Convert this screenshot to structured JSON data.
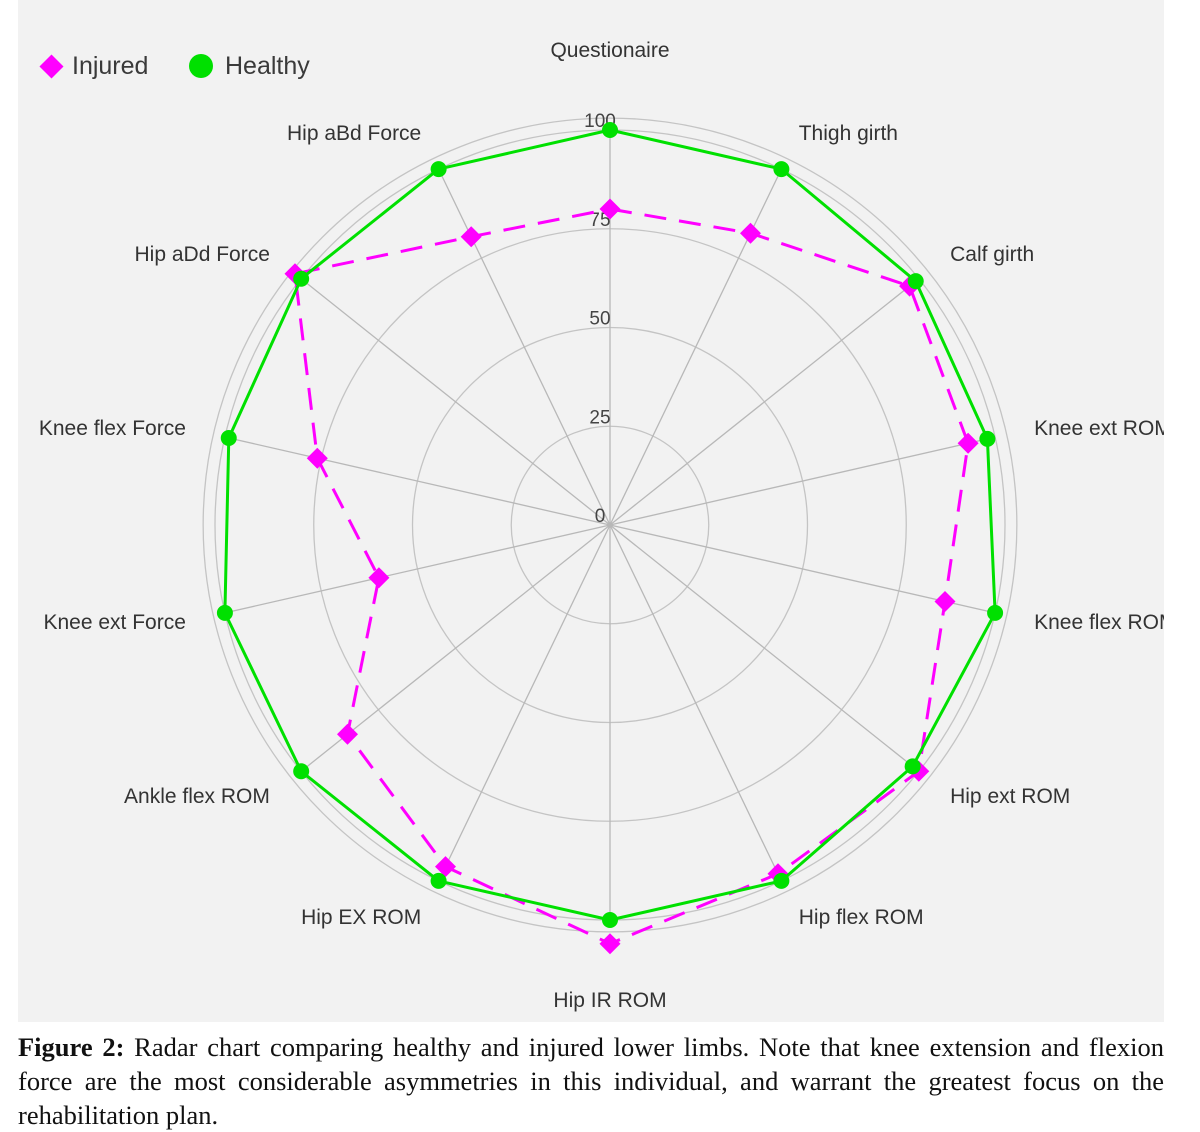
{
  "legend": {
    "injured_label": "Injured",
    "healthy_label": "Healthy"
  },
  "caption": {
    "label": "Figure 2:",
    "text": " Radar chart comparing healthy and injured lower limbs. Note that knee extension and flexion force are the most considerable asymmetries in this individual, and warrant the greatest focus on the rehabilitation plan."
  },
  "chart_data": {
    "type": "radar",
    "axes": [
      "Questionaire",
      "Thigh girth",
      "Calf girth",
      "Knee ext ROM",
      "Knee flex ROM",
      "Hip ext ROM",
      "Hip flex ROM",
      "Hip IR ROM",
      "Hip EX ROM",
      "Ankle flex ROM",
      "Knee ext Force",
      "Knee flex Force",
      "Hip aDd Force",
      "Hip aBd Force"
    ],
    "radial_ticks": [
      0,
      25,
      50,
      75,
      100
    ],
    "rlim": [
      0,
      100
    ],
    "grid": true,
    "legend_position": "top-left",
    "series": [
      {
        "name": "Injured",
        "color": "#ff00ff",
        "marker": "diamond",
        "line_style": "dashed",
        "values": [
          80,
          82,
          97,
          93,
          87,
          100,
          98,
          106,
          96,
          85,
          60,
          76,
          102,
          81
        ]
      },
      {
        "name": "Healthy",
        "color": "#00e000",
        "marker": "circle",
        "line_style": "solid",
        "values": [
          100,
          100,
          99,
          98,
          100,
          98,
          100,
          100,
          100,
          100,
          100,
          99,
          100,
          100
        ]
      }
    ]
  }
}
